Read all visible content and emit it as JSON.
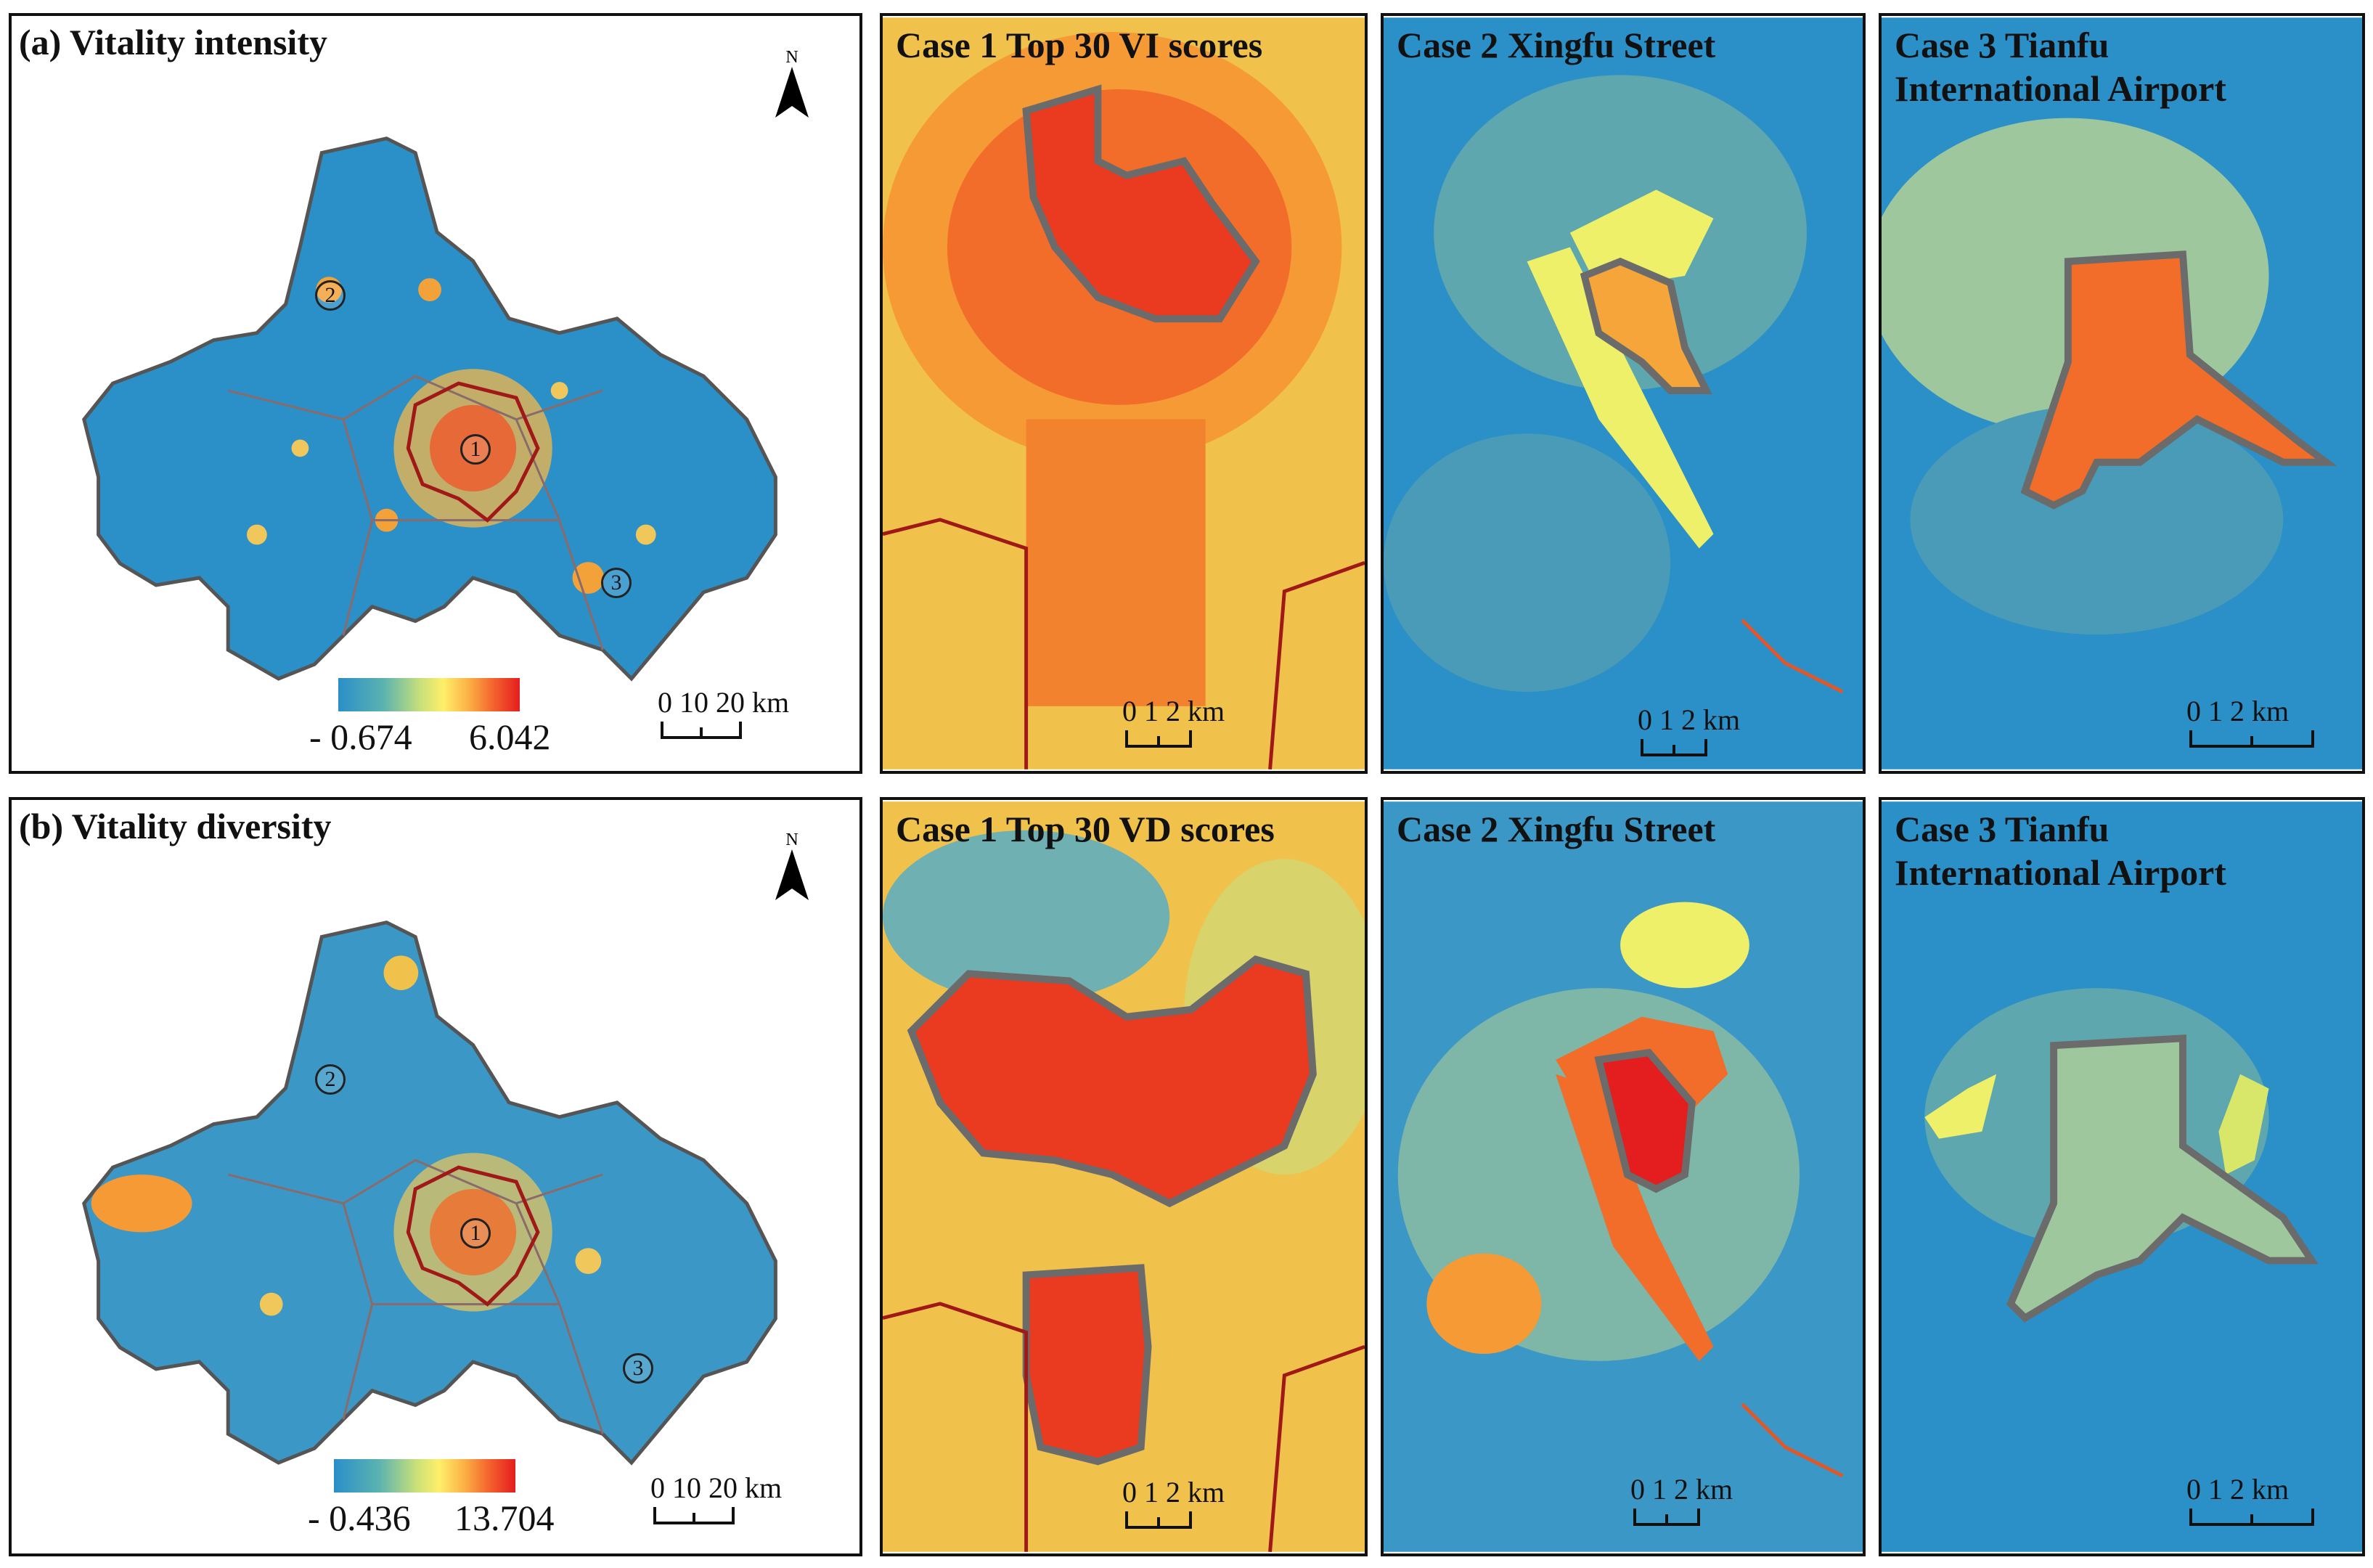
{
  "panels": {
    "a": {
      "title": "(a) Vitality intensity",
      "north_label": "N",
      "legend_min": "- 0.674",
      "legend_max": "6.042",
      "scale_ticks": "0  10 20  km",
      "markers": [
        "1",
        "2",
        "3"
      ],
      "cases": [
        {
          "title_line1": "Case 1 Top 30 VI scores",
          "title_line2": "",
          "scale_ticks": "0 1 2  km"
        },
        {
          "title_line1": "Case 2 Xingfu Street",
          "title_line2": "",
          "scale_ticks": "0 1 2  km"
        },
        {
          "title_line1": "Case 3 Tianfu",
          "title_line2": "International Airport",
          "scale_ticks": "0    1    2  km"
        }
      ]
    },
    "b": {
      "title": "(b) Vitality diversity",
      "north_label": "N",
      "legend_min": "- 0.436",
      "legend_max": "13.704",
      "scale_ticks": "0  10 20  km",
      "markers": [
        "1",
        "2",
        "3"
      ],
      "cases": [
        {
          "title_line1": "Case 1 Top 30 VD scores",
          "title_line2": "",
          "scale_ticks": "0 1 2  km"
        },
        {
          "title_line1": "Case 2 Xingfu Street",
          "title_line2": "",
          "scale_ticks": "0 1 2  km"
        },
        {
          "title_line1": "Case 3 Tianfu",
          "title_line2": "International Airport",
          "scale_ticks": "0    1    2  km"
        }
      ]
    }
  },
  "colors": {
    "low": "#2a8fc9",
    "mid_low": "#5bb3b0",
    "mid": "#ffef6a",
    "mid_high": "#f3602c",
    "high": "#e41e1e",
    "boundary_gray": "#6b6b6b",
    "boundary_red": "#a01818"
  }
}
